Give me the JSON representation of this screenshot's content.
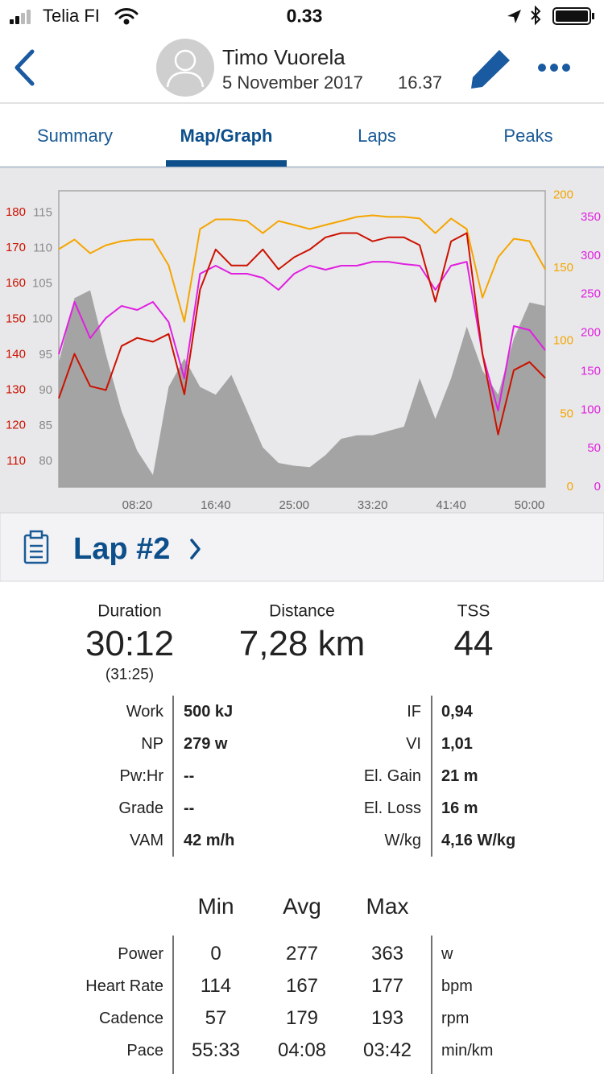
{
  "status_bar": {
    "carrier": "Telia FI",
    "time": "0.33"
  },
  "header": {
    "name": "Timo Vuorela",
    "date": "5 November 2017",
    "time": "16.37"
  },
  "tabs": [
    "Summary",
    "Map/Graph",
    "Laps",
    "Peaks"
  ],
  "active_tab": 1,
  "chart_data": {
    "type": "line",
    "x": [
      0,
      100,
      200,
      300,
      400,
      500,
      600,
      700,
      800,
      900,
      1000,
      1100,
      1200,
      1300,
      1400,
      1500,
      1600,
      1700,
      1800,
      1900,
      2000,
      2100,
      2200,
      2300,
      2400,
      2500,
      2600,
      2700,
      2800,
      2900,
      3000,
      3100
    ],
    "xlim": [
      0,
      3100
    ],
    "xticks": [
      {
        "value": 500,
        "label": "08:20"
      },
      {
        "value": 1000,
        "label": "16:40"
      },
      {
        "value": 1500,
        "label": "25:00"
      },
      {
        "value": 2000,
        "label": "33:20"
      },
      {
        "value": 2500,
        "label": "41:40"
      },
      {
        "value": 3000,
        "label": "50:00"
      }
    ],
    "axes": [
      {
        "color": "#cc1100",
        "lim": [
          102.7,
          186.1
        ],
        "ticks": [
          110,
          120,
          130,
          140,
          150,
          160,
          170,
          180
        ]
      },
      {
        "color": "#8a8a8a",
        "lim": [
          76.4,
          118.1
        ],
        "ticks": [
          80,
          85,
          90,
          95,
          100,
          105,
          110,
          115
        ]
      },
      {
        "color": "#f5a500",
        "lim": [
          0,
          203
        ],
        "ticks": [
          0,
          50,
          100,
          150,
          200
        ]
      },
      {
        "color": "#e020e0",
        "lim": [
          0,
          384.5
        ],
        "ticks": [
          0,
          50,
          100,
          150,
          200,
          250,
          300,
          350
        ]
      }
    ],
    "series": [
      {
        "axis": 1,
        "kind": "area",
        "color": "#9c9c9c",
        "values": [
          93.9,
          103.0,
          104.1,
          95.1,
          87.1,
          81.5,
          78.1,
          90.5,
          94.5,
          90.5,
          89.4,
          92.2,
          87.1,
          82.0,
          79.8,
          79.4,
          79.2,
          80.9,
          83.2,
          83.7,
          83.7,
          84.3,
          84.9,
          91.7,
          86.0,
          91.7,
          99.0,
          92.8,
          89.4,
          97.3,
          102.4,
          101.9
        ]
      },
      {
        "axis": 2,
        "kind": "line",
        "color": "#f5a500",
        "values": [
          163.0,
          169.6,
          160.2,
          165.7,
          168.5,
          169.6,
          169.6,
          151.9,
          113.3,
          176.8,
          183.4,
          183.4,
          182.3,
          174.0,
          182.3,
          179.6,
          176.8,
          179.6,
          182.3,
          185.1,
          186.2,
          185.1,
          185.1,
          184.0,
          174.0,
          184.0,
          176.8,
          129.8,
          157.5,
          170.2,
          168.5,
          149.2
        ]
      },
      {
        "axis": 3,
        "kind": "line",
        "color": "#e020e0",
        "values": [
          172.4,
          240.3,
          193.3,
          219.4,
          235.1,
          229.9,
          240.3,
          214.2,
          141.0,
          276.9,
          287.3,
          276.9,
          276.9,
          271.6,
          256.0,
          276.9,
          287.3,
          282.1,
          287.3,
          287.3,
          292.5,
          292.5,
          289.4,
          287.3,
          256.0,
          287.3,
          292.5,
          172.4,
          99.3,
          209.0,
          203.7,
          177.6
        ]
      },
      {
        "axis": 0,
        "kind": "line",
        "color": "#cc1100",
        "values": [
          127.7,
          140.2,
          131.1,
          130.0,
          142.4,
          144.7,
          143.6,
          145.8,
          128.8,
          158.3,
          169.6,
          165.1,
          165.1,
          169.6,
          164.0,
          167.4,
          169.6,
          173.0,
          174.2,
          174.2,
          171.9,
          173.0,
          173.0,
          170.8,
          154.9,
          171.9,
          174.2,
          140.2,
          117.5,
          135.6,
          137.9,
          133.4
        ]
      }
    ]
  },
  "lap": {
    "title": "Lap #2"
  },
  "totals": [
    {
      "label": "Duration",
      "value": "30:12",
      "sub": "(31:25)"
    },
    {
      "label": "Distance",
      "value": "7,28 km"
    },
    {
      "label": "TSS",
      "value": "44"
    }
  ],
  "details": {
    "left": [
      [
        "Work",
        "500 kJ"
      ],
      [
        "NP",
        "279 w"
      ],
      [
        "Pw:Hr",
        "--"
      ],
      [
        "Grade",
        "--"
      ],
      [
        "VAM",
        "42 m/h"
      ]
    ],
    "right": [
      [
        "IF",
        "0,94"
      ],
      [
        "VI",
        "1,01"
      ],
      [
        "El. Gain",
        "21 m"
      ],
      [
        "El. Loss",
        "16 m"
      ],
      [
        "W/kg",
        "4,16 W/kg"
      ]
    ]
  },
  "metrics": {
    "columns": [
      "Min",
      "Avg",
      "Max"
    ],
    "rows": [
      {
        "label": "Power",
        "values": [
          "0",
          "277",
          "363"
        ],
        "unit": "w"
      },
      {
        "label": "Heart Rate",
        "values": [
          "114",
          "167",
          "177"
        ],
        "unit": "bpm"
      },
      {
        "label": "Cadence",
        "values": [
          "57",
          "179",
          "193"
        ],
        "unit": "rpm"
      },
      {
        "label": "Pace",
        "values": [
          "55:33",
          "04:08",
          "03:42"
        ],
        "unit": "min/km"
      }
    ]
  }
}
